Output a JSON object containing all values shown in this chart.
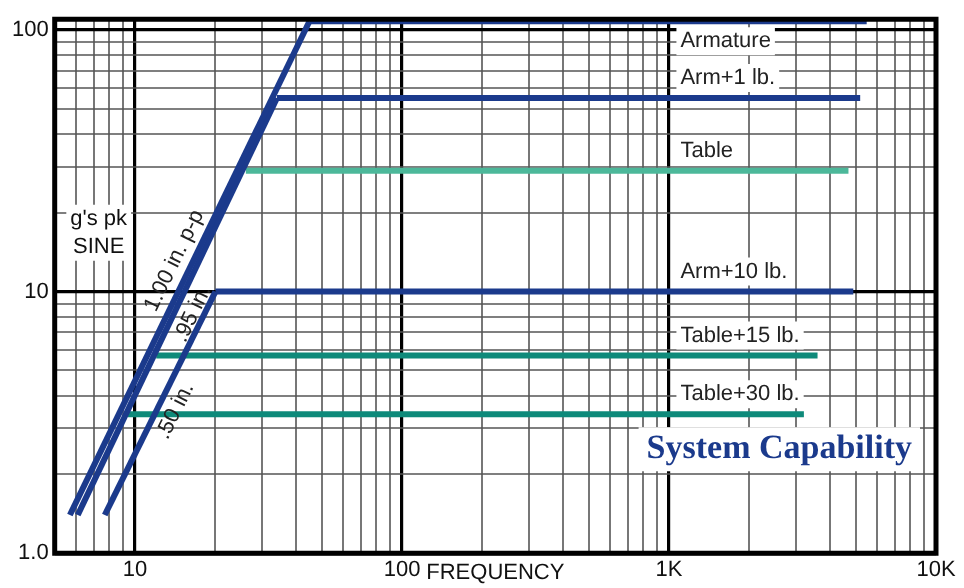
{
  "chart_data": {
    "type": "line",
    "title": "System Capability",
    "xlabel": "FREQUENCY",
    "ylabel": "g's pk SINE",
    "log": "xy",
    "grid": true,
    "legend": false,
    "marker": "none",
    "line_style": "solid",
    "xlim": [
      5,
      10000
    ],
    "ylim": [
      1,
      110
    ],
    "xticks": [
      {
        "value": 6,
        "label": null
      },
      {
        "value": 7,
        "label": null
      },
      {
        "value": 8,
        "label": null
      },
      {
        "value": 9,
        "label": null
      },
      10,
      {
        "value": 20,
        "label": null
      },
      {
        "value": 30,
        "label": null
      },
      {
        "value": 40,
        "label": null
      },
      {
        "value": 50,
        "label": null
      },
      {
        "value": 60,
        "label": null
      },
      {
        "value": 70,
        "label": null
      },
      {
        "value": 80,
        "label": null
      },
      {
        "value": 90,
        "label": null
      },
      100,
      {
        "value": 200,
        "label": null
      },
      {
        "value": 300,
        "label": null
      },
      {
        "value": 400,
        "label": null
      },
      {
        "value": 500,
        "label": null
      },
      {
        "value": 600,
        "label": null
      },
      {
        "value": 700,
        "label": null
      },
      {
        "value": 800,
        "label": null
      },
      {
        "value": 900,
        "label": null
      },
      {
        "value": 1000,
        "label": "1K"
      },
      {
        "value": 2000,
        "label": null
      },
      {
        "value": 3000,
        "label": null
      },
      {
        "value": 4000,
        "label": null
      },
      {
        "value": 5000,
        "label": null
      },
      {
        "value": 6000,
        "label": null
      },
      {
        "value": 7000,
        "label": null
      },
      {
        "value": 8000,
        "label": null
      },
      {
        "value": 9000,
        "label": null
      },
      {
        "value": 10000,
        "label": "10K"
      }
    ],
    "yticks": [
      {
        "value": 1,
        "label": "1.0"
      },
      {
        "value": 2,
        "label": null
      },
      {
        "value": 3,
        "label": null
      },
      {
        "value": 4,
        "label": null
      },
      {
        "value": 5,
        "label": null
      },
      {
        "value": 6,
        "label": null
      },
      {
        "value": 7,
        "label": null
      },
      {
        "value": 8,
        "label": null
      },
      {
        "value": 9,
        "label": null
      },
      10,
      {
        "value": 20,
        "label": null
      },
      {
        "value": 30,
        "label": null
      },
      {
        "value": 40,
        "label": null
      },
      {
        "value": 50,
        "label": null
      },
      {
        "value": 60,
        "label": null
      },
      {
        "value": 70,
        "label": null
      },
      {
        "value": 80,
        "label": null
      },
      {
        "value": 90,
        "label": null
      },
      100
    ],
    "series": [
      {
        "name": "1.00 in. p-p",
        "color": "#1b3a8c",
        "x": [
          5.7,
          45
        ],
        "values": [
          1.4,
          108
        ]
      },
      {
        "name": ".95 in.",
        "color": "#1b3a8c",
        "x": [
          6.1,
          34
        ],
        "values": [
          1.4,
          55
        ]
      },
      {
        "name": ".50 in.",
        "color": "#1b3a8c",
        "x": [
          7.7,
          20
        ],
        "values": [
          1.4,
          10
        ]
      },
      {
        "name": "Armature",
        "color": "#1b3a8c",
        "x": [
          45,
          5500
        ],
        "values": [
          108,
          108
        ]
      },
      {
        "name": "Arm+1 lb.",
        "color": "#1b3a8c",
        "x": [
          34,
          5200
        ],
        "values": [
          55,
          55
        ]
      },
      {
        "name": "Table",
        "color": "#4cb89a",
        "x": [
          26,
          4700
        ],
        "values": [
          29,
          29
        ]
      },
      {
        "name": "Arm+10 lb.",
        "color": "#1b3a8c",
        "x": [
          20,
          4900
        ],
        "values": [
          10,
          10
        ]
      },
      {
        "name": "Table+15 lb.",
        "color": "#0e8a7a",
        "x": [
          12,
          3600
        ],
        "values": [
          5.7,
          5.7
        ]
      },
      {
        "name": "Table+30 lb.",
        "color": "#0e8a7a",
        "x": [
          9.4,
          3200
        ],
        "values": [
          3.4,
          3.4
        ]
      }
    ]
  }
}
